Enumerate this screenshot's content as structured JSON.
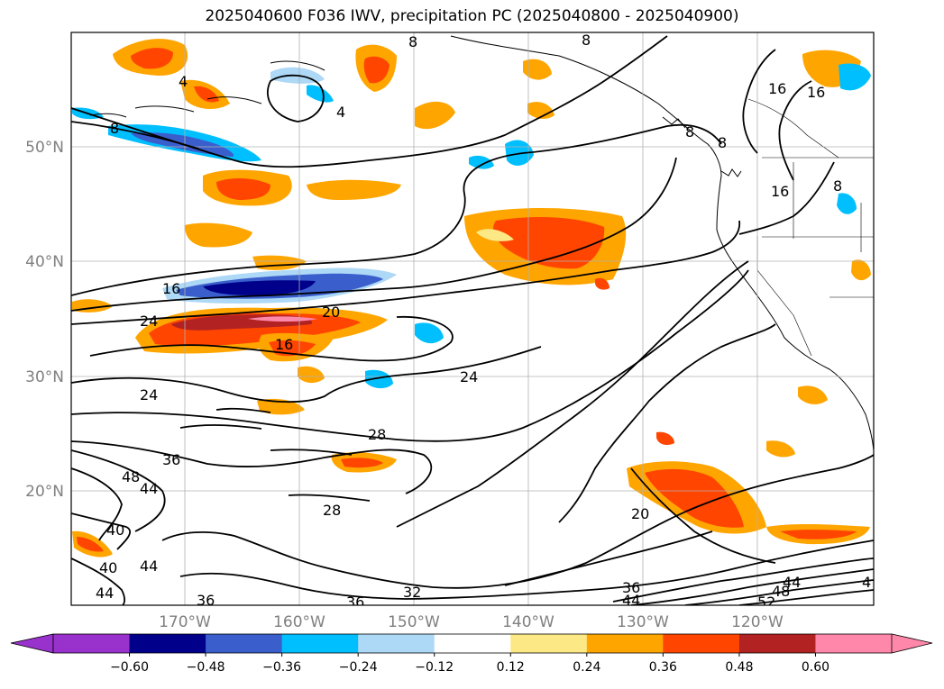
{
  "title": "2025040600 F036 IWV, precipitation PC (2025040800 - 2025040900)",
  "lat_labels": [
    "50°N",
    "40°N",
    "30°N",
    "20°N"
  ],
  "lon_labels": [
    "170°W",
    "160°W",
    "150°W",
    "140°W",
    "130°W",
    "120°W"
  ],
  "contour_labels": [
    "8",
    "4",
    "4",
    "8",
    "16",
    "8",
    "8",
    "8",
    "8",
    "16",
    "16",
    "16",
    "20",
    "24",
    "16",
    "24",
    "24",
    "28",
    "36",
    "48",
    "44",
    "28",
    "40",
    "40",
    "44",
    "44",
    "36",
    "36",
    "32",
    "20",
    "36",
    "44",
    "44",
    "48",
    "52",
    "4"
  ],
  "colorbar": {
    "tick_labels": [
      "−0.60",
      "−0.48",
      "−0.36",
      "−0.24",
      "−0.12",
      "0.12",
      "0.24",
      "0.36",
      "0.48",
      "0.60"
    ],
    "colors": [
      "#9932cc",
      "#00008b",
      "#3a5fcd",
      "#00bfff",
      "#add8f6",
      "#ffffff",
      "#fce884",
      "#ffa500",
      "#ff4500",
      "#b22222",
      "#ff88aa"
    ]
  }
}
